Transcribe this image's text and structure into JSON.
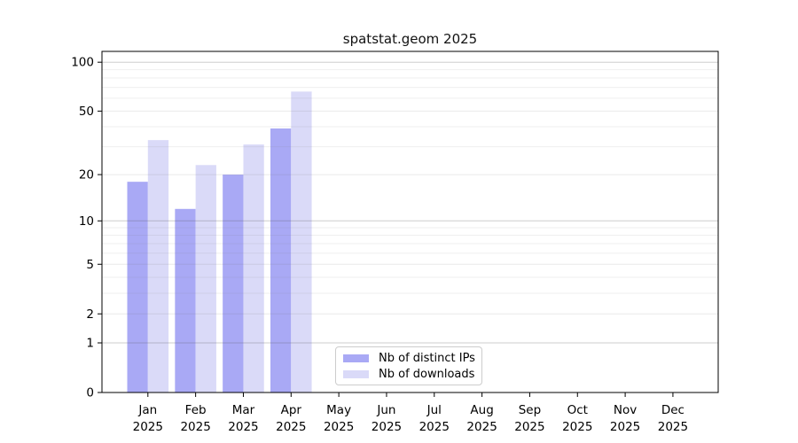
{
  "title": "spatstat.geom 2025",
  "year_label": "2025",
  "chart_data": {
    "type": "bar",
    "title": "spatstat.geom 2025",
    "categories": [
      "Jan",
      "Feb",
      "Mar",
      "Apr",
      "May",
      "Jun",
      "Jul",
      "Aug",
      "Sep",
      "Oct",
      "Nov",
      "Dec"
    ],
    "category_year": "2025",
    "series": [
      {
        "name": "Nb of distinct IPs",
        "color": "#a9a9f5",
        "values": [
          18,
          12,
          20,
          39,
          0,
          0,
          0,
          0,
          0,
          0,
          0,
          0
        ]
      },
      {
        "name": "Nb of downloads",
        "color": "#dadaf8",
        "values": [
          33,
          23,
          31,
          66,
          0,
          0,
          0,
          0,
          0,
          0,
          0,
          0
        ]
      }
    ],
    "y_scale": "log1p",
    "y_ticks": [
      0,
      1,
      2,
      5,
      10,
      20,
      50,
      100
    ],
    "y_decade_ticks": [
      1,
      10,
      100
    ],
    "y_minor_ticks": [
      3,
      4,
      6,
      7,
      8,
      9,
      30,
      40,
      60,
      70,
      80,
      90
    ],
    "ylim": [
      0,
      115
    ],
    "grid": "on",
    "legend_position": "lower-center"
  },
  "legend": {
    "items": [
      {
        "label": "Nb of distinct IPs",
        "color": "#a9a9f5"
      },
      {
        "label": "Nb of downloads",
        "color": "#dadaf8"
      }
    ]
  },
  "colors": {
    "bar_ips": "#a9a9f5",
    "bar_downloads": "#dadaf8",
    "grid_decade": "#d4d4d4",
    "grid_major": "#e8e8e8",
    "grid_minor": "#efefef",
    "axis": "#000000",
    "legend_border": "#cccccc"
  }
}
